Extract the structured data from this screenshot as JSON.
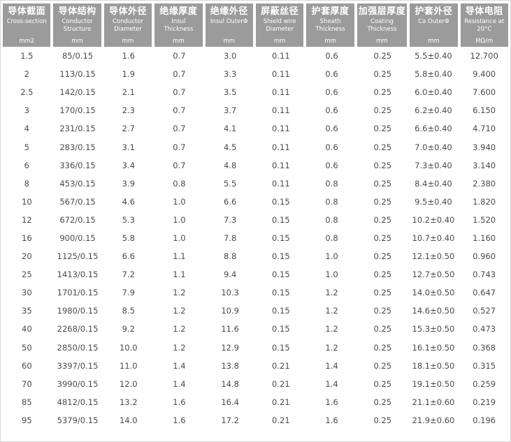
{
  "colors": {
    "header_bg": "#9b9b9b",
    "header_text": "#ffffff",
    "body_bg": "#ffffff",
    "body_text": "#4a4a4a",
    "page_border": "#d6d6d6"
  },
  "table": {
    "columns": [
      {
        "zh": "导体截面",
        "en": "Cross-section",
        "unit": "mm2"
      },
      {
        "zh": "导体结构",
        "en": "Conductor Structure",
        "unit": "mm"
      },
      {
        "zh": "导体外径",
        "en": "Conductor Diameter",
        "unit": "mm"
      },
      {
        "zh": "绝缘厚度",
        "en": "Insul Thickness",
        "unit": "mm"
      },
      {
        "zh": "绝缘外径",
        "en": "Insul OuterΦ",
        "unit": "mm"
      },
      {
        "zh": "屏蔽丝径",
        "en": "Shield wire Diameter",
        "unit": "mm"
      },
      {
        "zh": "护套厚度",
        "en": "Sheath Thickness",
        "unit": "mm"
      },
      {
        "zh": "加强层厚度",
        "en": "Coating Thickness",
        "unit": "mm"
      },
      {
        "zh": "护套外径",
        "en": "Ca OuterΦ",
        "unit": "mm"
      },
      {
        "zh": "导体电阻",
        "en": "Resistance at 20°C",
        "unit": "MΩ/m"
      }
    ],
    "rows": [
      [
        "1.5",
        "85/0.15",
        "1.6",
        "0.7",
        "3.0",
        "0.11",
        "0.6",
        "0.25",
        "5.5±0.40",
        "12.700"
      ],
      [
        "2",
        "113/0.15",
        "1.9",
        "0.7",
        "3.3",
        "0.11",
        "0.6",
        "0.25",
        "5.8±0.40",
        "9.400"
      ],
      [
        "2.5",
        "142/0.15",
        "2.1",
        "0.7",
        "3.5",
        "0.11",
        "0.6",
        "0.25",
        "6.0±0.40",
        "7.600"
      ],
      [
        "3",
        "170/0.15",
        "2.3",
        "0.7",
        "3.7",
        "0.11",
        "0.6",
        "0.25",
        "6.2±0.40",
        "6.150"
      ],
      [
        "4",
        "231/0.15",
        "2.7",
        "0.7",
        "4.1",
        "0.11",
        "0.6",
        "0.25",
        "6.6±0.40",
        "4.710"
      ],
      [
        "5",
        "283/0.15",
        "3.1",
        "0.7",
        "4.5",
        "0.11",
        "0.6",
        "0.25",
        "7.0±0.40",
        "3.940"
      ],
      [
        "6",
        "336/0.15",
        "3.4",
        "0.7",
        "4.8",
        "0.11",
        "0.6",
        "0.25",
        "7.3±0.40",
        "3.140"
      ],
      [
        "8",
        "453/0.15",
        "3.9",
        "0.8",
        "5.5",
        "0.11",
        "0.8",
        "0.25",
        "8.4±0.40",
        "2.380"
      ],
      [
        "10",
        "567/0.15",
        "4.6",
        "1.0",
        "6.6",
        "0.15",
        "0.8",
        "0.25",
        "9.5±0.40",
        "1.820"
      ],
      [
        "12",
        "672/0.15",
        "5.3",
        "1.0",
        "7.3",
        "0.15",
        "0.8",
        "0.25",
        "10.2±0.40",
        "1.520"
      ],
      [
        "16",
        "900/0.15",
        "5.8",
        "1.0",
        "7.8",
        "0.15",
        "0.8",
        "0.25",
        "10.7±0.40",
        "1.160"
      ],
      [
        "20",
        "1125/0.15",
        "6.6",
        "1.1",
        "8.8",
        "0.15",
        "1.0",
        "0.25",
        "12.1±0.50",
        "0.960"
      ],
      [
        "25",
        "1413/0.15",
        "7.2",
        "1.1",
        "9.4",
        "0.15",
        "1.0",
        "0.25",
        "12.7±0.50",
        "0.743"
      ],
      [
        "30",
        "1701/0.15",
        "7.9",
        "1.2",
        "10.3",
        "0.15",
        "1.2",
        "0.25",
        "14.0±0.50",
        "0.647"
      ],
      [
        "35",
        "1980/0.15",
        "8.5",
        "1.2",
        "10.9",
        "0.15",
        "1.2",
        "0.25",
        "14.6±0.50",
        "0.527"
      ],
      [
        "40",
        "2268/0.15",
        "9.2",
        "1.2",
        "11.6",
        "0.15",
        "1.2",
        "0.25",
        "15.3±0.50",
        "0.473"
      ],
      [
        "50",
        "2850/0.15",
        "10.0",
        "1.2",
        "12.9",
        "0.15",
        "1.2",
        "0.25",
        "16.1±0.50",
        "0.368"
      ],
      [
        "60",
        "3397/0.15",
        "11.0",
        "1.4",
        "13.8",
        "0.21",
        "1.4",
        "0.25",
        "18.1±0.50",
        "0.315"
      ],
      [
        "70",
        "3990/0.15",
        "12.0",
        "1.4",
        "14.8",
        "0.21",
        "1.4",
        "0.25",
        "19.1±0.50",
        "0.259"
      ],
      [
        "85",
        "4812/0.15",
        "13.2",
        "1.6",
        "16.4",
        "0.21",
        "1.6",
        "0.25",
        "21.1±0.60",
        "0.219"
      ],
      [
        "95",
        "5379/0.15",
        "14.0",
        "1.6",
        "17.2",
        "0.21",
        "1.6",
        "0.25",
        "21.9±0.60",
        "0.196"
      ]
    ]
  }
}
